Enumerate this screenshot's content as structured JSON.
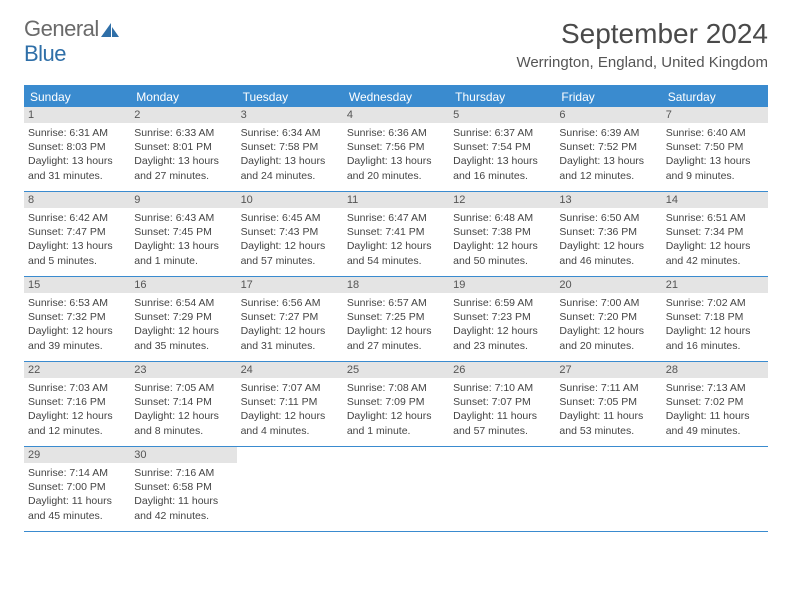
{
  "logo": {
    "text1": "General",
    "text2": "Blue"
  },
  "title": "September 2024",
  "location": "Werrington, England, United Kingdom",
  "colors": {
    "header_bg": "#3a8bcf",
    "daybar_bg": "#e4e4e4",
    "text": "#444444"
  },
  "weekdays": [
    "Sunday",
    "Monday",
    "Tuesday",
    "Wednesday",
    "Thursday",
    "Friday",
    "Saturday"
  ],
  "weeks": [
    [
      {
        "n": "1",
        "sr": "Sunrise: 6:31 AM",
        "ss": "Sunset: 8:03 PM",
        "d1": "Daylight: 13 hours",
        "d2": "and 31 minutes."
      },
      {
        "n": "2",
        "sr": "Sunrise: 6:33 AM",
        "ss": "Sunset: 8:01 PM",
        "d1": "Daylight: 13 hours",
        "d2": "and 27 minutes."
      },
      {
        "n": "3",
        "sr": "Sunrise: 6:34 AM",
        "ss": "Sunset: 7:58 PM",
        "d1": "Daylight: 13 hours",
        "d2": "and 24 minutes."
      },
      {
        "n": "4",
        "sr": "Sunrise: 6:36 AM",
        "ss": "Sunset: 7:56 PM",
        "d1": "Daylight: 13 hours",
        "d2": "and 20 minutes."
      },
      {
        "n": "5",
        "sr": "Sunrise: 6:37 AM",
        "ss": "Sunset: 7:54 PM",
        "d1": "Daylight: 13 hours",
        "d2": "and 16 minutes."
      },
      {
        "n": "6",
        "sr": "Sunrise: 6:39 AM",
        "ss": "Sunset: 7:52 PM",
        "d1": "Daylight: 13 hours",
        "d2": "and 12 minutes."
      },
      {
        "n": "7",
        "sr": "Sunrise: 6:40 AM",
        "ss": "Sunset: 7:50 PM",
        "d1": "Daylight: 13 hours",
        "d2": "and 9 minutes."
      }
    ],
    [
      {
        "n": "8",
        "sr": "Sunrise: 6:42 AM",
        "ss": "Sunset: 7:47 PM",
        "d1": "Daylight: 13 hours",
        "d2": "and 5 minutes."
      },
      {
        "n": "9",
        "sr": "Sunrise: 6:43 AM",
        "ss": "Sunset: 7:45 PM",
        "d1": "Daylight: 13 hours",
        "d2": "and 1 minute."
      },
      {
        "n": "10",
        "sr": "Sunrise: 6:45 AM",
        "ss": "Sunset: 7:43 PM",
        "d1": "Daylight: 12 hours",
        "d2": "and 57 minutes."
      },
      {
        "n": "11",
        "sr": "Sunrise: 6:47 AM",
        "ss": "Sunset: 7:41 PM",
        "d1": "Daylight: 12 hours",
        "d2": "and 54 minutes."
      },
      {
        "n": "12",
        "sr": "Sunrise: 6:48 AM",
        "ss": "Sunset: 7:38 PM",
        "d1": "Daylight: 12 hours",
        "d2": "and 50 minutes."
      },
      {
        "n": "13",
        "sr": "Sunrise: 6:50 AM",
        "ss": "Sunset: 7:36 PM",
        "d1": "Daylight: 12 hours",
        "d2": "and 46 minutes."
      },
      {
        "n": "14",
        "sr": "Sunrise: 6:51 AM",
        "ss": "Sunset: 7:34 PM",
        "d1": "Daylight: 12 hours",
        "d2": "and 42 minutes."
      }
    ],
    [
      {
        "n": "15",
        "sr": "Sunrise: 6:53 AM",
        "ss": "Sunset: 7:32 PM",
        "d1": "Daylight: 12 hours",
        "d2": "and 39 minutes."
      },
      {
        "n": "16",
        "sr": "Sunrise: 6:54 AM",
        "ss": "Sunset: 7:29 PM",
        "d1": "Daylight: 12 hours",
        "d2": "and 35 minutes."
      },
      {
        "n": "17",
        "sr": "Sunrise: 6:56 AM",
        "ss": "Sunset: 7:27 PM",
        "d1": "Daylight: 12 hours",
        "d2": "and 31 minutes."
      },
      {
        "n": "18",
        "sr": "Sunrise: 6:57 AM",
        "ss": "Sunset: 7:25 PM",
        "d1": "Daylight: 12 hours",
        "d2": "and 27 minutes."
      },
      {
        "n": "19",
        "sr": "Sunrise: 6:59 AM",
        "ss": "Sunset: 7:23 PM",
        "d1": "Daylight: 12 hours",
        "d2": "and 23 minutes."
      },
      {
        "n": "20",
        "sr": "Sunrise: 7:00 AM",
        "ss": "Sunset: 7:20 PM",
        "d1": "Daylight: 12 hours",
        "d2": "and 20 minutes."
      },
      {
        "n": "21",
        "sr": "Sunrise: 7:02 AM",
        "ss": "Sunset: 7:18 PM",
        "d1": "Daylight: 12 hours",
        "d2": "and 16 minutes."
      }
    ],
    [
      {
        "n": "22",
        "sr": "Sunrise: 7:03 AM",
        "ss": "Sunset: 7:16 PM",
        "d1": "Daylight: 12 hours",
        "d2": "and 12 minutes."
      },
      {
        "n": "23",
        "sr": "Sunrise: 7:05 AM",
        "ss": "Sunset: 7:14 PM",
        "d1": "Daylight: 12 hours",
        "d2": "and 8 minutes."
      },
      {
        "n": "24",
        "sr": "Sunrise: 7:07 AM",
        "ss": "Sunset: 7:11 PM",
        "d1": "Daylight: 12 hours",
        "d2": "and 4 minutes."
      },
      {
        "n": "25",
        "sr": "Sunrise: 7:08 AM",
        "ss": "Sunset: 7:09 PM",
        "d1": "Daylight: 12 hours",
        "d2": "and 1 minute."
      },
      {
        "n": "26",
        "sr": "Sunrise: 7:10 AM",
        "ss": "Sunset: 7:07 PM",
        "d1": "Daylight: 11 hours",
        "d2": "and 57 minutes."
      },
      {
        "n": "27",
        "sr": "Sunrise: 7:11 AM",
        "ss": "Sunset: 7:05 PM",
        "d1": "Daylight: 11 hours",
        "d2": "and 53 minutes."
      },
      {
        "n": "28",
        "sr": "Sunrise: 7:13 AM",
        "ss": "Sunset: 7:02 PM",
        "d1": "Daylight: 11 hours",
        "d2": "and 49 minutes."
      }
    ],
    [
      {
        "n": "29",
        "sr": "Sunrise: 7:14 AM",
        "ss": "Sunset: 7:00 PM",
        "d1": "Daylight: 11 hours",
        "d2": "and 45 minutes."
      },
      {
        "n": "30",
        "sr": "Sunrise: 7:16 AM",
        "ss": "Sunset: 6:58 PM",
        "d1": "Daylight: 11 hours",
        "d2": "and 42 minutes."
      },
      null,
      null,
      null,
      null,
      null
    ]
  ]
}
